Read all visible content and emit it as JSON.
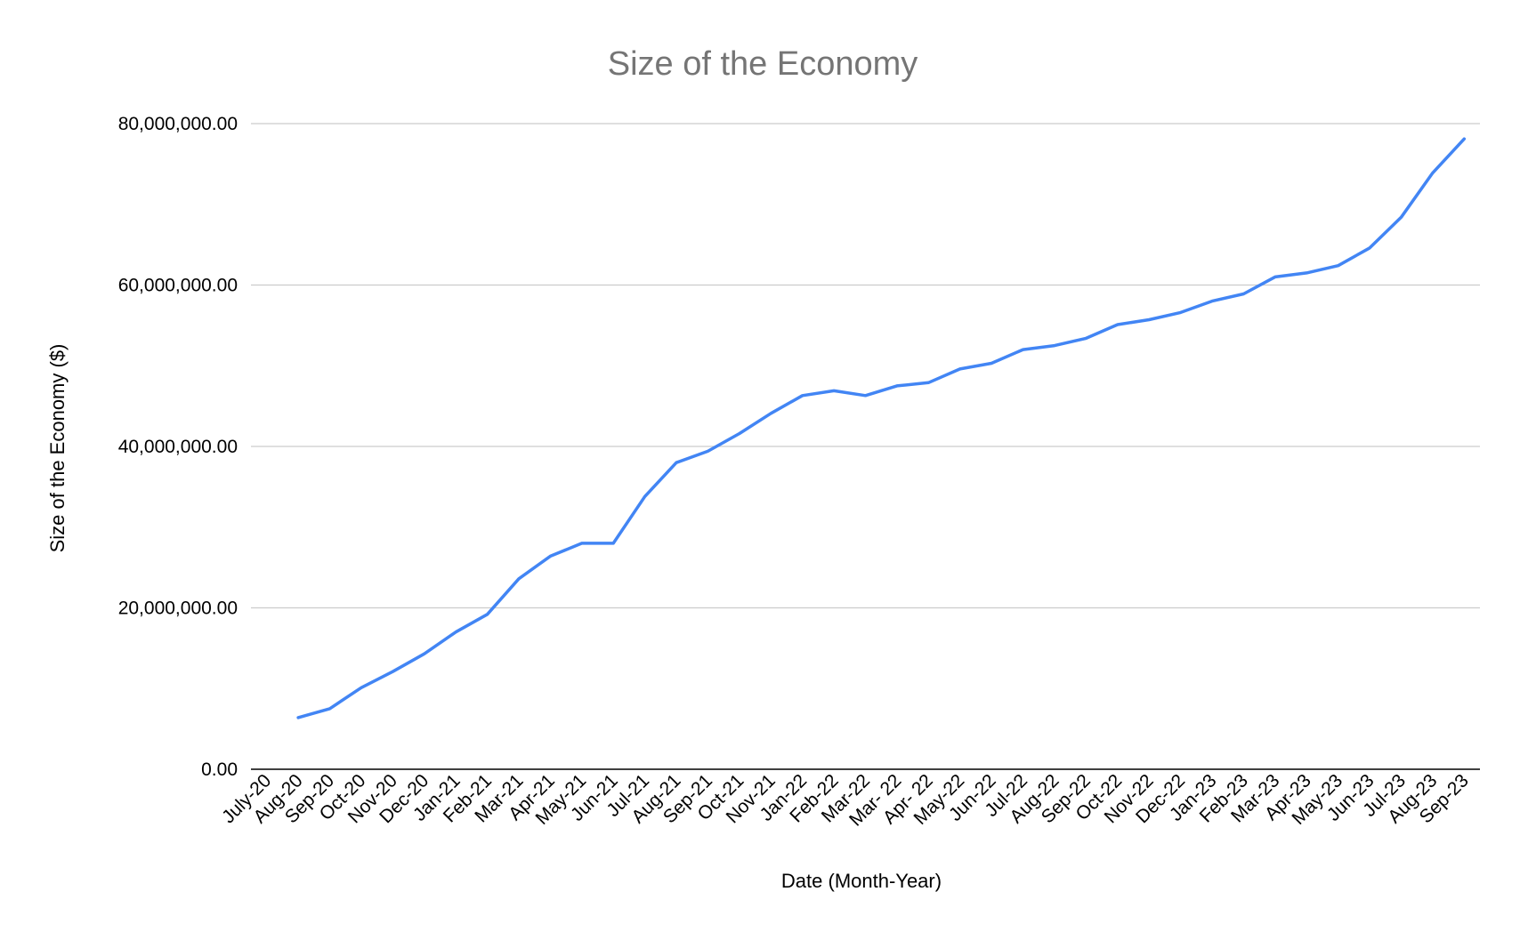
{
  "chart_data": {
    "type": "line",
    "title": "Size of the Economy",
    "xlabel": "Date (Month-Year)",
    "ylabel": "Size of the Economy ($)",
    "ylim": [
      0,
      80000000
    ],
    "yticks": [
      "0.00",
      "20,000,000.00",
      "40,000,000.00",
      "60,000,000.00",
      "80,000,000.00"
    ],
    "ytick_values": [
      0,
      20000000,
      40000000,
      60000000,
      80000000
    ],
    "grid": true,
    "legend": "none",
    "line_color": "#4285F4",
    "categories": [
      "July-20",
      "Aug-20",
      "Sep-20",
      "Oct-20",
      "Nov-20",
      "Dec-20",
      "Jan-21",
      "Feb-21",
      "Mar-21",
      "Apr-21",
      "May-21",
      "Jun-21",
      "Jul-21",
      "Aug-21",
      "Sep-21",
      "Oct-21",
      "Nov-21",
      "Jan-22",
      "Feb-22",
      "Mar-22",
      "Mar- 22",
      "Apr- 22",
      "May-22",
      "Jun-22",
      "Jul-22",
      "Aug-22",
      "Sep-22",
      "Oct-22",
      "Nov-22",
      "Dec-22",
      "Jan-23",
      "Feb-23",
      "Mar-23",
      "Apr-23",
      "May-23",
      "Jun-23",
      "Jul-23",
      "Aug-23",
      "Sep-23"
    ],
    "series": [
      {
        "values": [
          null,
          6400000,
          7500000,
          10100000,
          12100000,
          14300000,
          17000000,
          19200000,
          23600000,
          26400000,
          28000000,
          28000000,
          33800000,
          38000000,
          39400000,
          41600000,
          44100000,
          46300000,
          46900000,
          46300000,
          47500000,
          47900000,
          49600000,
          50300000,
          52000000,
          52500000,
          53400000,
          55100000,
          55700000,
          56600000,
          58000000,
          58900000,
          61000000,
          61500000,
          62400000,
          64600000,
          68400000,
          73900000,
          78100000
        ]
      }
    ]
  }
}
